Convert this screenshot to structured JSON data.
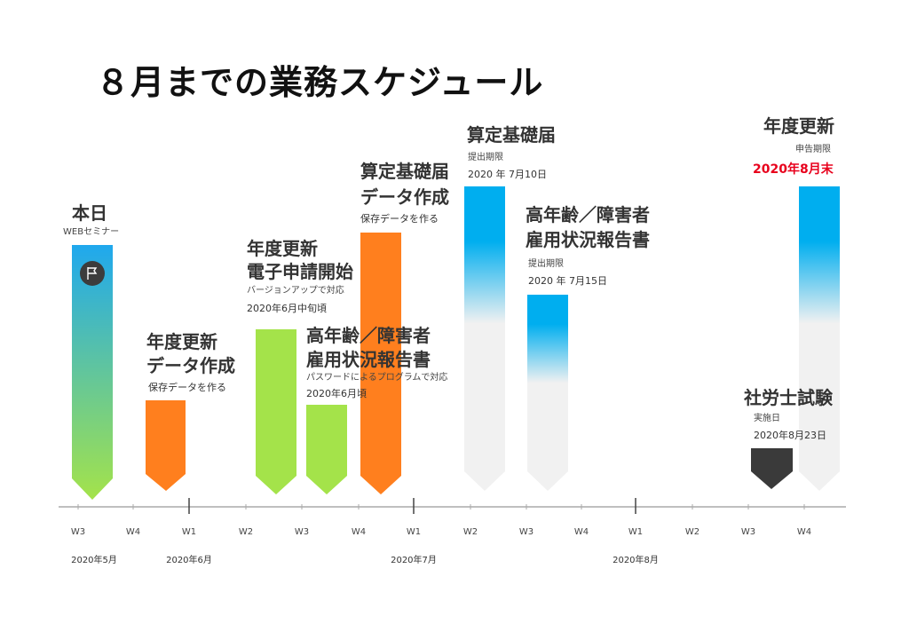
{
  "title": "８月までの業務スケジュール",
  "weeks": [
    "W3",
    "W4",
    "W1",
    "W2",
    "W3",
    "W4",
    "W1",
    "W2",
    "W3",
    "W4",
    "W1",
    "W2",
    "W3",
    "W4"
  ],
  "months": [
    "2020年5月",
    "2020年6月",
    "2020年7月",
    "2020年8月"
  ],
  "events": {
    "today": {
      "title": "本日",
      "sub": "WEBセミナー",
      "icon": "flag-icon"
    },
    "update_data_1": {
      "line1": "年度更新",
      "line2": "データ作成",
      "sub": "保存データを作る"
    },
    "update_e_app": {
      "line1": "年度更新",
      "line2": "電子申請開始",
      "sub1": "バージョンアップで対応",
      "sub2": "2020年6月中旬頃"
    },
    "elderly_report_1": {
      "line1": "高年齢／障害者",
      "line2": "雇用状況報告書",
      "sub1": "パスワードによるプログラムで対応",
      "sub2": "2020年6月頃"
    },
    "santei_data": {
      "line1": "算定基礎届",
      "line2": "データ作成",
      "sub": "保存データを作る"
    },
    "santei_deadline": {
      "title": "算定基礎届",
      "sub1": "提出期限",
      "sub2": "2020 年 7月10日"
    },
    "elderly_report_deadline": {
      "line1": "高年齢／障害者",
      "line2": "雇用状況報告書",
      "sub1": "提出期限",
      "sub2": "2020 年 7月15日"
    },
    "sharoushi_exam": {
      "title": "社労士試験",
      "sub1": "実施日",
      "sub2": "2020年8月23日"
    },
    "update_deadline": {
      "title": "年度更新",
      "sub1": "申告期限",
      "sub2": "2020年8月末"
    }
  },
  "colors": {
    "blue": "#00aeef",
    "green": "#a4e34a",
    "orange": "#ff7f1e",
    "gray": "#f1f1f1",
    "dark": "#3a3a3a",
    "red": "#e8001c"
  }
}
